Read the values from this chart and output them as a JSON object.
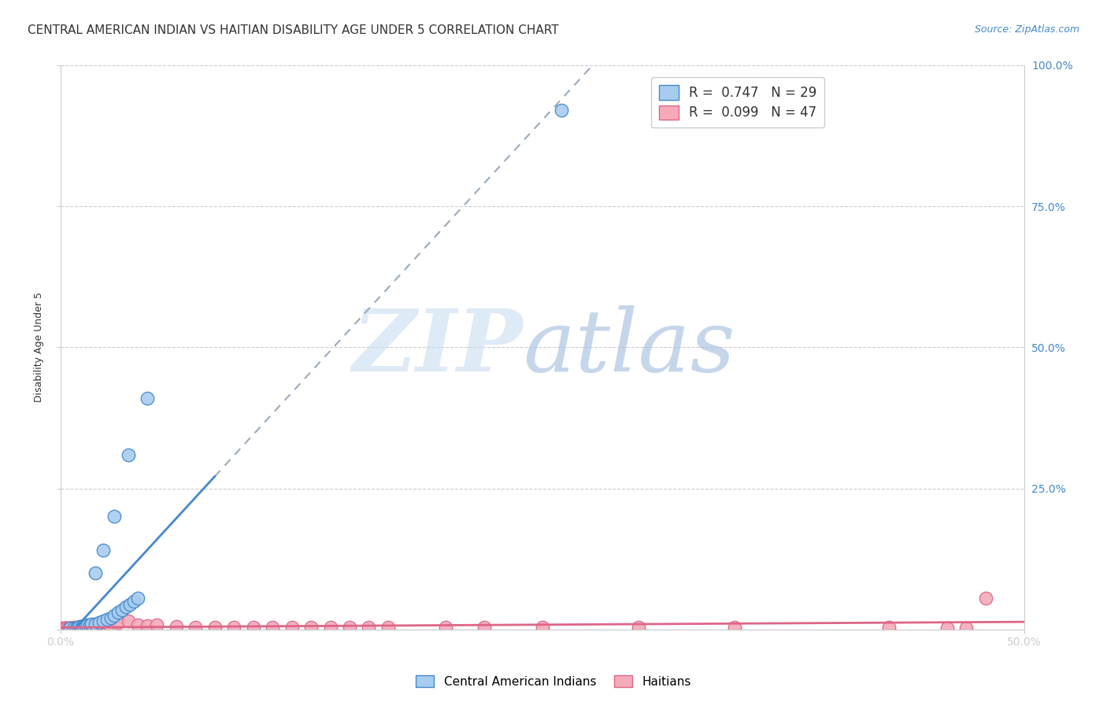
{
  "title": "CENTRAL AMERICAN INDIAN VS HAITIAN DISABILITY AGE UNDER 5 CORRELATION CHART",
  "source": "Source: ZipAtlas.com",
  "ylabel": "Disability Age Under 5",
  "xlim": [
    0.0,
    0.5
  ],
  "ylim": [
    0.0,
    1.0
  ],
  "xticks": [
    0.0,
    0.5
  ],
  "xticklabels": [
    "0.0%",
    "50.0%"
  ],
  "yticks": [
    0.0,
    0.25,
    0.5,
    0.75,
    1.0
  ],
  "yticklabels_right": [
    "",
    "25.0%",
    "50.0%",
    "75.0%",
    "100.0%"
  ],
  "legend_r1_r": "R = ",
  "legend_r1_val": "0.747",
  "legend_r1_n": "  N = ",
  "legend_r1_nval": "29",
  "legend_r2_r": "R = ",
  "legend_r2_val": "0.099",
  "legend_r2_n": "  N = ",
  "legend_r2_nval": "47",
  "blue_color": "#A8CCEE",
  "pink_color": "#F4AABB",
  "blue_line_color": "#4488CC",
  "pink_line_color": "#DD6688",
  "blue_scatter_x": [
    0.005,
    0.007,
    0.008,
    0.009,
    0.01,
    0.011,
    0.012,
    0.013,
    0.014,
    0.015,
    0.016,
    0.018,
    0.02,
    0.022,
    0.024,
    0.026,
    0.028,
    0.03,
    0.032,
    0.034,
    0.036,
    0.038,
    0.04,
    0.018,
    0.022,
    0.028,
    0.035,
    0.045,
    0.26
  ],
  "blue_scatter_y": [
    0.002,
    0.003,
    0.003,
    0.004,
    0.005,
    0.005,
    0.006,
    0.007,
    0.008,
    0.008,
    0.009,
    0.01,
    0.012,
    0.015,
    0.018,
    0.02,
    0.025,
    0.03,
    0.035,
    0.04,
    0.045,
    0.05,
    0.055,
    0.1,
    0.14,
    0.2,
    0.31,
    0.41,
    0.92
  ],
  "pink_scatter_x": [
    0.001,
    0.002,
    0.003,
    0.003,
    0.004,
    0.005,
    0.005,
    0.006,
    0.007,
    0.007,
    0.008,
    0.009,
    0.01,
    0.011,
    0.012,
    0.013,
    0.015,
    0.017,
    0.02,
    0.022,
    0.025,
    0.03,
    0.035,
    0.04,
    0.045,
    0.05,
    0.06,
    0.07,
    0.08,
    0.09,
    0.1,
    0.11,
    0.12,
    0.13,
    0.14,
    0.15,
    0.16,
    0.17,
    0.2,
    0.22,
    0.25,
    0.3,
    0.35,
    0.43,
    0.46,
    0.47,
    0.48
  ],
  "pink_scatter_y": [
    0.002,
    0.002,
    0.003,
    0.003,
    0.002,
    0.003,
    0.003,
    0.003,
    0.003,
    0.004,
    0.003,
    0.003,
    0.003,
    0.003,
    0.004,
    0.003,
    0.004,
    0.004,
    0.004,
    0.005,
    0.01,
    0.012,
    0.015,
    0.008,
    0.007,
    0.008,
    0.005,
    0.004,
    0.004,
    0.004,
    0.004,
    0.004,
    0.004,
    0.004,
    0.004,
    0.004,
    0.004,
    0.004,
    0.004,
    0.004,
    0.004,
    0.004,
    0.004,
    0.004,
    0.003,
    0.003,
    0.055
  ],
  "grid_color": "#CCCCCC",
  "background_color": "#FFFFFF",
  "title_fontsize": 11,
  "axis_label_fontsize": 9,
  "tick_fontsize": 10,
  "source_fontsize": 9,
  "watermark_zip_color": "#C8DCF0",
  "watermark_atlas_color": "#A0BCDC",
  "blue_line_solid_xmax": 0.08,
  "blue_line_dash_xmin": 0.08,
  "blue_line_dash_xmax": 0.38
}
